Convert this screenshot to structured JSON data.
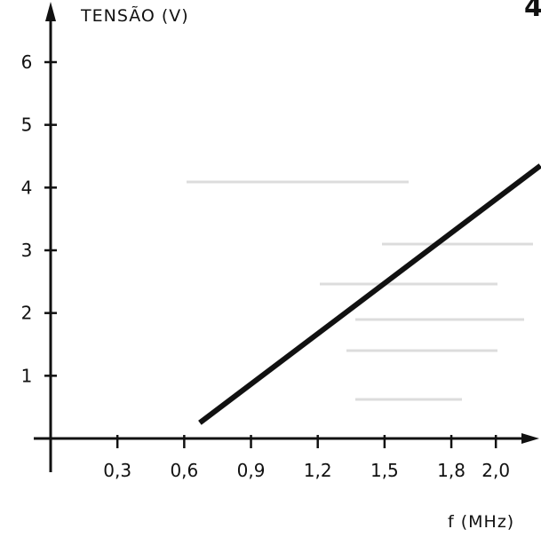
{
  "page_number": "4",
  "chart_data": {
    "type": "line",
    "ylabel": "TENSÃO (V)",
    "xlabel": "f (MHz)",
    "x_ticks": [
      0.3,
      0.6,
      0.9,
      1.2,
      1.5,
      1.8,
      2.0
    ],
    "x_tick_labels": [
      "0,3",
      "0,6",
      "0,9",
      "1,2",
      "1,5",
      "1,8",
      "2,0"
    ],
    "y_ticks": [
      1,
      2,
      3,
      4,
      5,
      6
    ],
    "y_tick_labels": [
      "1",
      "2",
      "3",
      "4",
      "5",
      "6"
    ],
    "xlim": [
      0,
      2.3
    ],
    "ylim": [
      0,
      6.5
    ],
    "grid": false,
    "series": [
      {
        "color": "#111111",
        "x": [
          0.67,
          2.2
        ],
        "y": [
          0.25,
          4.35
        ]
      }
    ]
  }
}
